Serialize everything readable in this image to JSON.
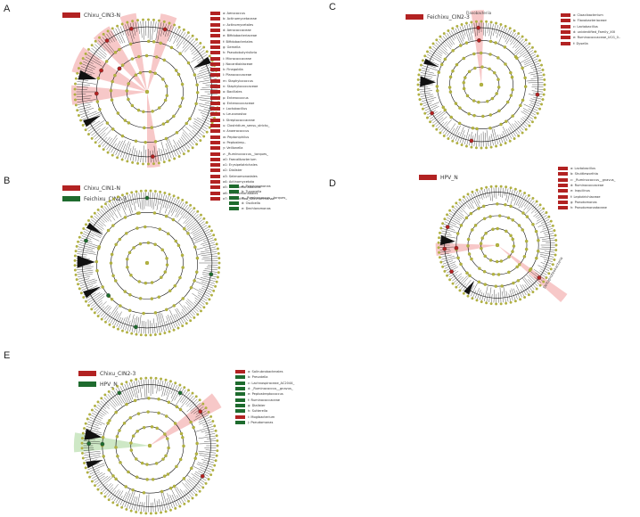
{
  "colors": {
    "red": "#b22222",
    "green": "#1e6b2e",
    "node": "#b3b341",
    "ring_edge": "#9e9e30",
    "pale_red": "#f4b5b5",
    "pale_green": "#bde0b3",
    "line": "#111111"
  },
  "panels": [
    {
      "id": "A",
      "letter": "A",
      "groups": [
        {
          "label": "Chixu_CIN3-N",
          "color": "#b22222"
        }
      ],
      "taxa": [
        {
          "label": "a: Aerococcus",
          "color": "#b22222"
        },
        {
          "label": "b: Actinomycetaceae",
          "color": "#b22222"
        },
        {
          "label": "c: Actinomycetales",
          "color": "#b22222"
        },
        {
          "label": "d: Aerococcaceae",
          "color": "#b22222"
        },
        {
          "label": "e: Bifidobacteriaceae",
          "color": "#b22222"
        },
        {
          "label": "f: Bifidobacteriales",
          "color": "#b22222"
        },
        {
          "label": "g: Gemella",
          "color": "#b22222"
        },
        {
          "label": "h: Pseudobutyrivibrio",
          "color": "#b22222"
        },
        {
          "label": "i: Micrococcaceae",
          "color": "#b22222"
        },
        {
          "label": "j: Nocardioidaceae",
          "color": "#b22222"
        },
        {
          "label": "k: Finegoldia",
          "color": "#b22222"
        },
        {
          "label": "l: Planococcaceae",
          "color": "#b22222"
        },
        {
          "label": "m: Staphylococcus",
          "color": "#b22222"
        },
        {
          "label": "n: Staphylococcaceae",
          "color": "#b22222"
        },
        {
          "label": "o: Bacillales",
          "color": "#b22222"
        },
        {
          "label": "p: Enterococcus",
          "color": "#b22222"
        },
        {
          "label": "q: Enterococcaceae",
          "color": "#b22222"
        },
        {
          "label": "r: Lactobacillus",
          "color": "#b22222"
        },
        {
          "label": "s: Leuconostoc",
          "color": "#b22222"
        },
        {
          "label": "t: Streptococcaceae",
          "color": "#b22222"
        },
        {
          "label": "u: Clostridium_sensu_stricto_",
          "color": "#b22222"
        },
        {
          "label": "v: Anaerococcus",
          "color": "#b22222"
        },
        {
          "label": "w: Peptoniphilus",
          "color": "#b22222"
        },
        {
          "label": "x: Peptostrep..",
          "color": "#b22222"
        },
        {
          "label": "y: Veillonella",
          "color": "#b22222"
        },
        {
          "label": "z: _Ruminococcus__torques_",
          "color": "#b22222"
        },
        {
          "label": "a0: Faecalibacterium",
          "color": "#b22222"
        },
        {
          "label": "a1: Erysipelotrichales",
          "color": "#b22222"
        },
        {
          "label": "a2: Dialister",
          "color": "#b22222"
        },
        {
          "label": "a3: Selenomonadales",
          "color": "#b22222"
        },
        {
          "label": "a4: Actinomycetota",
          "color": "#b22222"
        },
        {
          "label": "a5: Nitrosomonadaceae",
          "color": "#b22222"
        },
        {
          "label": "a6: Nitrosomonadales",
          "color": "#b22222"
        },
        {
          "label": "a7: unidentified_Saccharimonas",
          "color": "#b22222"
        }
      ]
    },
    {
      "id": "B",
      "letter": "B",
      "groups": [
        {
          "label": "Chixu_CIN1-N",
          "color": "#b22222"
        },
        {
          "label": "Feichixu_CIN2-3",
          "color": "#1e6b2e"
        }
      ],
      "taxa": [
        {
          "label": "a: Porphyromonas",
          "color": "#1e6b2e"
        },
        {
          "label": "b: Tuzzerella",
          "color": "#1e6b2e"
        },
        {
          "label": "c: _Ruminococcus__torques_",
          "color": "#1e6b2e"
        },
        {
          "label": "d: Oscibella",
          "color": "#1e6b2e"
        },
        {
          "label": "e: Dechloromonas",
          "color": "#1e6b2e"
        }
      ]
    },
    {
      "id": "C",
      "letter": "C",
      "groups": [
        {
          "label": "Feichixu_CIN2-3",
          "color": "#b22222"
        }
      ],
      "annotation": "Flavobacteriia",
      "taxa": [
        {
          "label": "a: Cloacibacterium",
          "color": "#b22222"
        },
        {
          "label": "b: Flavobacteriaceae",
          "color": "#b22222"
        },
        {
          "label": "c: Lactobacillus",
          "color": "#b22222"
        },
        {
          "label": "d: unidentified_Family_XIII",
          "color": "#b22222"
        },
        {
          "label": "e: Ruminococcaceae_UCG_0..",
          "color": "#b22222"
        },
        {
          "label": "f: Dysella",
          "color": "#b22222"
        }
      ]
    },
    {
      "id": "D",
      "letter": "D",
      "groups": [
        {
          "label": "HPV_N",
          "color": "#b22222"
        }
      ],
      "annotation": "Deltaproteobacteria",
      "taxa": [
        {
          "label": "a: Lactobacillus",
          "color": "#b22222"
        },
        {
          "label": "b: Shuttleworthia",
          "color": "#b22222"
        },
        {
          "label": "c: _Ruminococcus__gnavus_",
          "color": "#b22222"
        },
        {
          "label": "d: Ruminococcaceae",
          "color": "#b22222"
        },
        {
          "label": "e: Inquilinus",
          "color": "#b22222"
        },
        {
          "label": "f: Leptotrichiaceae",
          "color": "#b22222"
        },
        {
          "label": "g: Pseudomonas",
          "color": "#b22222"
        },
        {
          "label": "h: Pseudomonadaceae",
          "color": "#b22222"
        }
      ]
    },
    {
      "id": "E",
      "letter": "E",
      "groups": [
        {
          "label": "Chixu_CIN2-3",
          "color": "#b22222"
        },
        {
          "label": "HPV_N",
          "color": "#1e6b2e"
        }
      ],
      "taxa": [
        {
          "label": "a: Solirubrobacterales",
          "color": "#b22222"
        },
        {
          "label": "b: Prevotella",
          "color": "#1e6b2e"
        },
        {
          "label": "c: Lachnospiraceae_AC2044_",
          "color": "#1e6b2e"
        },
        {
          "label": "d: _Ruminococcus__gnavus_",
          "color": "#1e6b2e"
        },
        {
          "label": "e: Peptostreptococcus",
          "color": "#1e6b2e"
        },
        {
          "label": "f: Ruminococcaceae",
          "color": "#1e6b2e"
        },
        {
          "label": "g: Dialister",
          "color": "#1e6b2e"
        },
        {
          "label": "h: Sutterella",
          "color": "#1e6b2e"
        },
        {
          "label": "i: Mogibacterium",
          "color": "#b22222"
        },
        {
          "label": "j: Pseudomonas",
          "color": "#1e6b2e"
        }
      ]
    }
  ]
}
